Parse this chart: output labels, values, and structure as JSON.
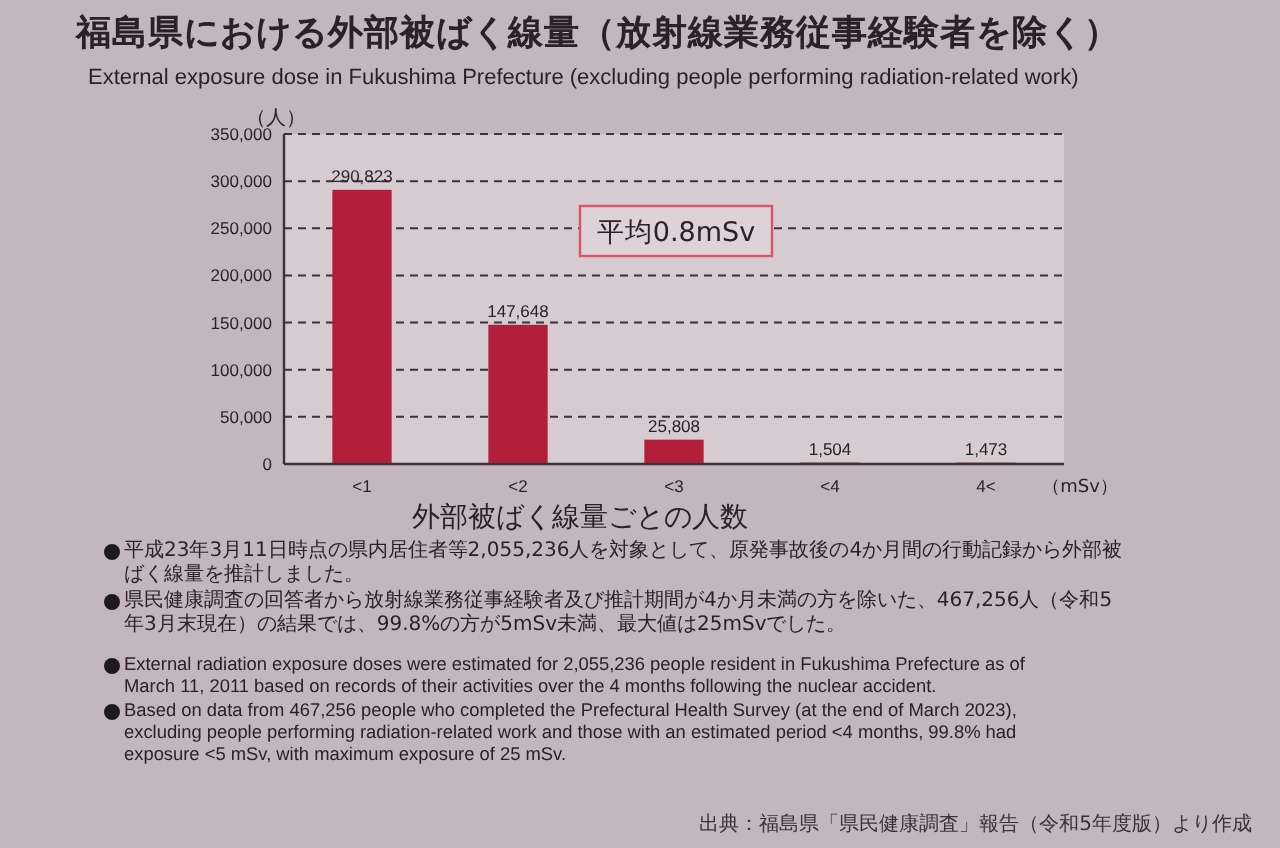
{
  "chart_data": {
    "type": "bar",
    "title": "福島県における外部被ばく線量（放射線業務従事経験者を除く）",
    "subtitle": "External exposure dose in Fukushima Prefecture (excluding people performing radiation-related work)",
    "ylabel": "（人）",
    "xlabel": "外部被ばく線量ごとの人数",
    "categories": [
      "<1",
      "<2",
      "<3",
      "<4",
      "4<"
    ],
    "values": [
      290823,
      147648,
      25808,
      1504,
      1473
    ],
    "value_labels": [
      "290,823",
      "147,648",
      "25,808",
      "1,504",
      "1,473"
    ],
    "color": "#b31e3a",
    "ylim": [
      0,
      350000
    ],
    "yticks": [
      0,
      {
        "value": 50000,
        "label": "50,000"
      },
      {
        "value": 100000,
        "label": "100,000"
      },
      {
        "value": 150000,
        "label": "150,000"
      },
      {
        "value": 200000,
        "label": "200,000"
      },
      {
        "value": 250000,
        "label": "250,000"
      },
      {
        "value": 300000,
        "label": "300,000"
      },
      {
        "value": 350000,
        "label": "350,000"
      }
    ],
    "grid": "y",
    "annotations": [
      "（mSv）",
      "平均0.8mSv",
      "平成23年3月11日時点の県内居住者等2,055,236人を対象として、原発事故後の4か月間の行動記録から外部被ばく線量を推計しました。",
      "県民健康調査の回答者から放射線業務従事経験者及び推計期間が4か月未満の方を除いた、467,256人（令和5年3月末現在）の結果では、99.8%の方が5mSv未満、最大値は25mSvでした。",
      "External radiation exposure doses were estimated for 2,055,236 people resident in Fukushima Prefecture as of March 11, 2011 based on records of their activities over the 4 months following the nuclear accident.",
      "Based on data from 467,256 people who completed the Prefectural Health Survey (at the end of March 2023), excluding people performing radiation-related work and those with an estimated period <4 months, 99.8% had exposure <5 mSv, with maximum exposure of 25 mSv.",
      "出典：福島県「県民健康調査」報告（令和5年度版）より作成"
    ]
  }
}
